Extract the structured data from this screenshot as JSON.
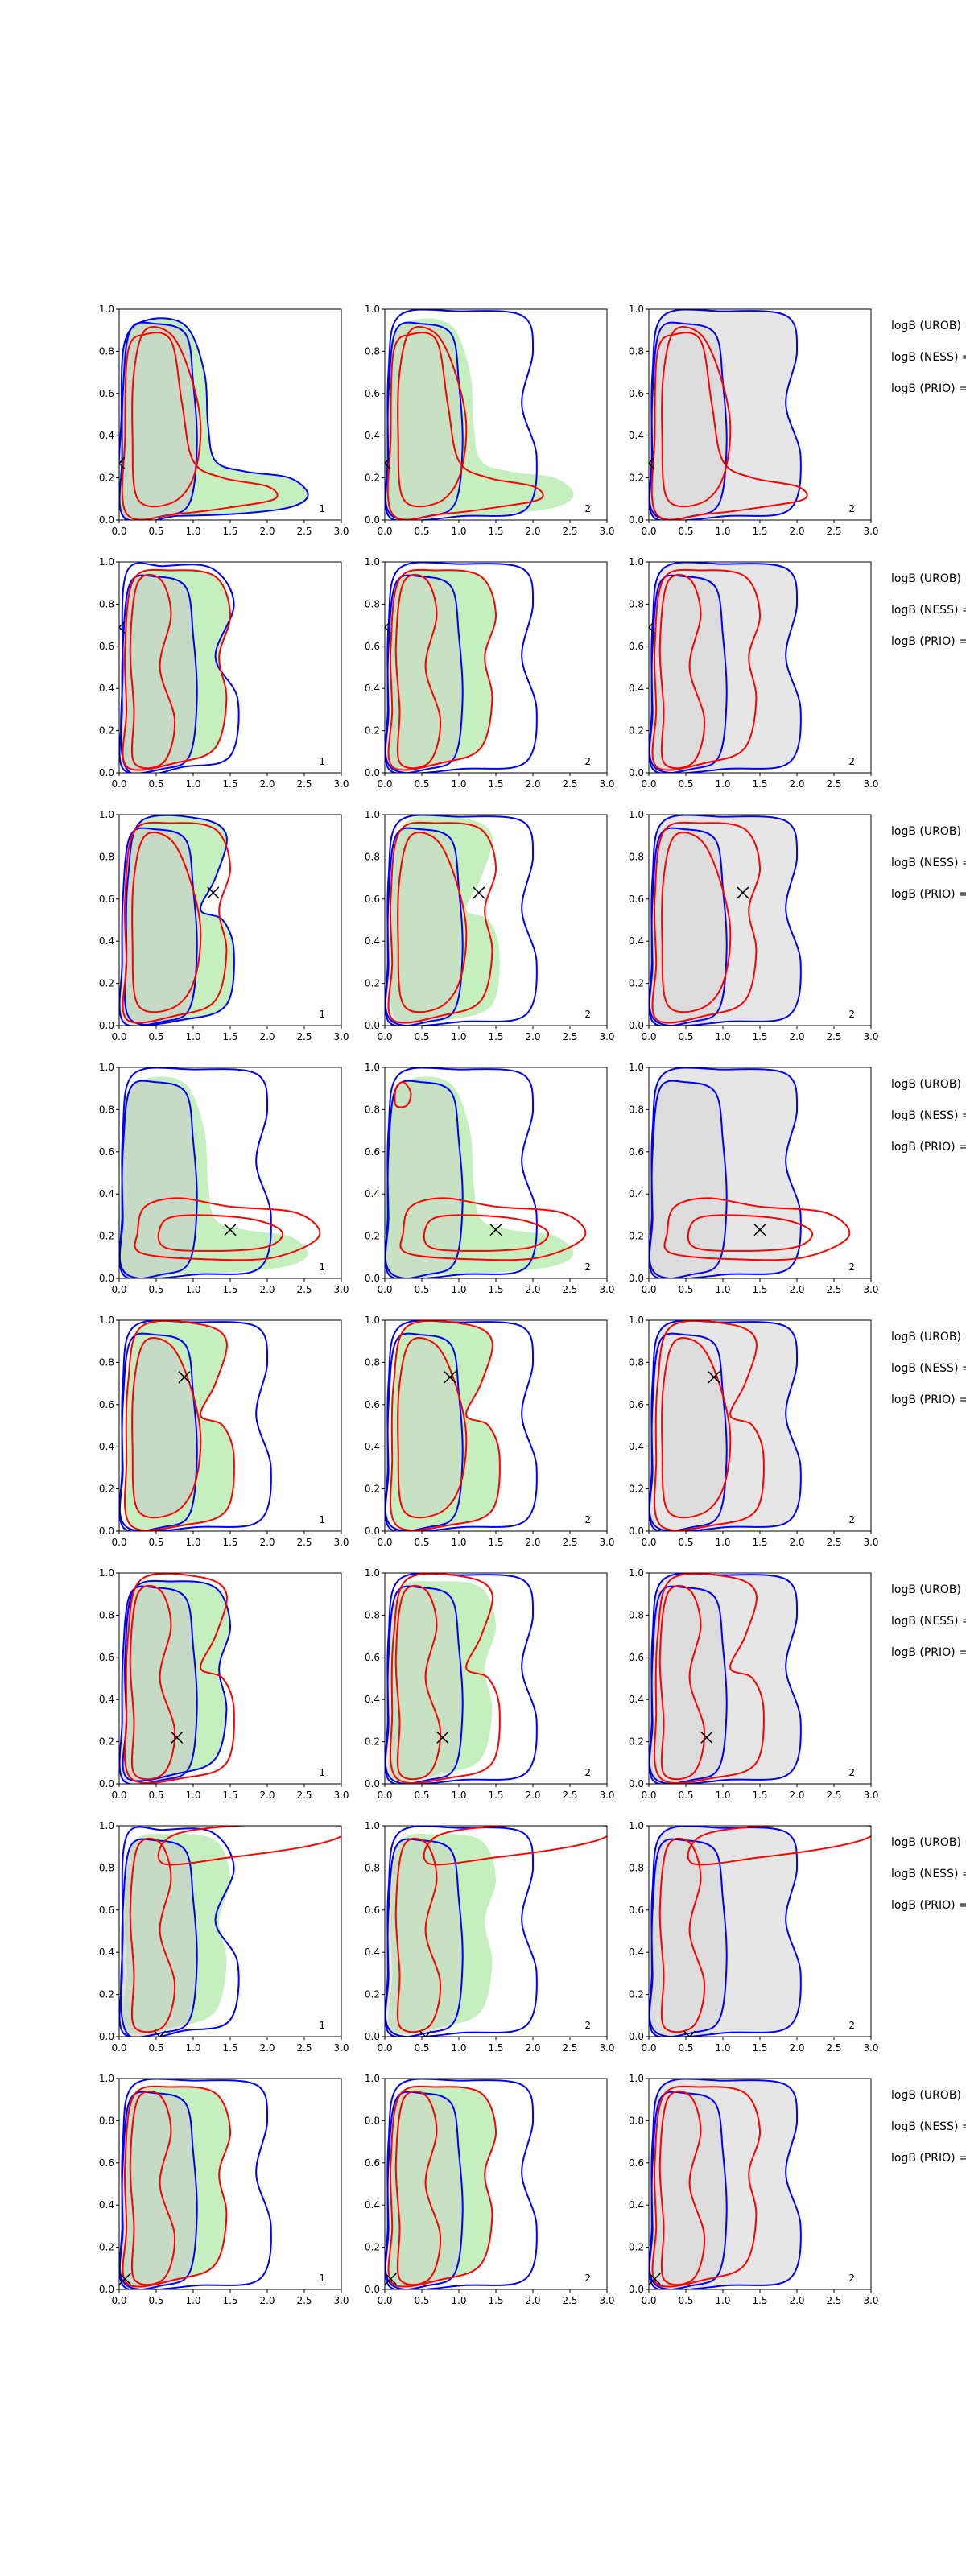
{
  "figure": {
    "rows": 8,
    "columns": 3,
    "x_ticks": [
      "0.0",
      "0.5",
      "1.0",
      "1.5",
      "2.0",
      "2.5",
      "3.0"
    ],
    "y_ticks": [
      "0.0",
      "0.2",
      "0.4",
      "0.6",
      "0.8",
      "1.0"
    ],
    "panel_numbers": [
      "1",
      "2",
      "2"
    ],
    "bf_labels": [
      "logB (UROB) =",
      "logB (NESS) =",
      "logB (PRIO) ="
    ]
  },
  "chart_data": {
    "type": "contour",
    "xlim": [
      0,
      3
    ],
    "ylim": [
      0,
      1
    ],
    "grid": false,
    "colors": {
      "fill_col1": "#c6efc0",
      "fill_col1_inner": "#c9c9c9",
      "fill_col2": "#c6efc0",
      "fill_col3": "#e6e6e6",
      "contour_blue": "#0000ff",
      "contour_red": "#ff0000",
      "marker": "#000000"
    },
    "marker_positions": [
      {
        "x": 0.0,
        "y": 0.27
      },
      {
        "x": 0.0,
        "y": 0.69
      },
      {
        "x": 1.27,
        "y": 0.63
      },
      {
        "x": 1.5,
        "y": 0.23
      },
      {
        "x": 0.88,
        "y": 0.73
      },
      {
        "x": 0.78,
        "y": 0.22
      },
      {
        "x": 0.55,
        "y": 0.0
      },
      {
        "x": 0.08,
        "y": 0.05
      }
    ]
  }
}
